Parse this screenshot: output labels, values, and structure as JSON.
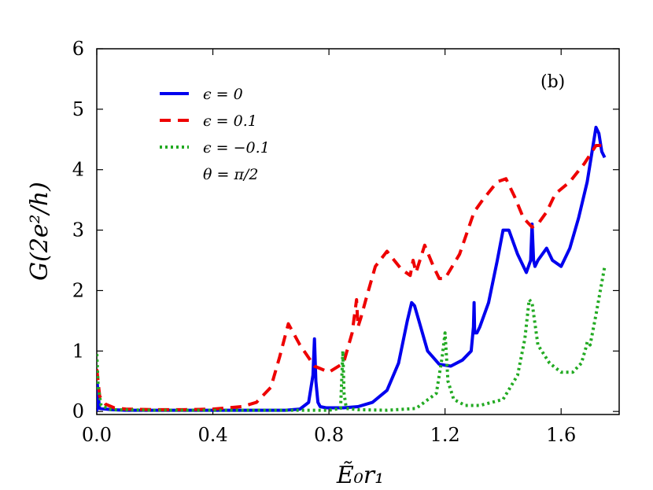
{
  "chart_data": {
    "type": "line",
    "title": "",
    "annotation": "(b)",
    "xlabel": "Ẽ₀r₁",
    "ylabel": "G(2e²/h)",
    "xlim": [
      0.0,
      1.8
    ],
    "ylim": [
      -0.05,
      6.0
    ],
    "xticks": [
      0.0,
      0.4,
      0.8,
      1.2,
      1.6
    ],
    "xtick_labels": [
      "0.0",
      "0.4",
      "0.8",
      "1.2",
      "1.6"
    ],
    "yticks": [
      0,
      1,
      2,
      3,
      4,
      5,
      6
    ],
    "ytick_labels": [
      "0",
      "1",
      "2",
      "3",
      "4",
      "5",
      "6"
    ],
    "grid": false,
    "legend_position": "top-left",
    "legend_note": "θ = π/2",
    "series": [
      {
        "name": "ϵ = 0",
        "color": "#0000ee",
        "style": "solid",
        "x": [
          0.0,
          0.002,
          0.005,
          0.01,
          0.05,
          0.1,
          0.2,
          0.3,
          0.4,
          0.5,
          0.6,
          0.65,
          0.7,
          0.73,
          0.745,
          0.75,
          0.755,
          0.762,
          0.77,
          0.79,
          0.85,
          0.9,
          0.95,
          1.0,
          1.04,
          1.07,
          1.085,
          1.095,
          1.11,
          1.14,
          1.18,
          1.22,
          1.26,
          1.29,
          1.298,
          1.3,
          1.302,
          1.31,
          1.32,
          1.35,
          1.38,
          1.4,
          1.42,
          1.45,
          1.48,
          1.495,
          1.5,
          1.505,
          1.51,
          1.52,
          1.55,
          1.57,
          1.6,
          1.63,
          1.66,
          1.69,
          1.71,
          1.72,
          1.73,
          1.74,
          1.75
        ],
        "y": [
          0.0,
          0.45,
          0.25,
          0.05,
          0.03,
          0.02,
          0.02,
          0.02,
          0.02,
          0.02,
          0.02,
          0.02,
          0.04,
          0.15,
          0.6,
          1.2,
          0.5,
          0.15,
          0.08,
          0.06,
          0.06,
          0.08,
          0.15,
          0.35,
          0.8,
          1.5,
          1.8,
          1.75,
          1.5,
          1.0,
          0.78,
          0.75,
          0.85,
          1.0,
          1.4,
          1.8,
          1.3,
          1.3,
          1.4,
          1.8,
          2.5,
          3.0,
          3.0,
          2.6,
          2.3,
          2.5,
          3.1,
          2.5,
          2.4,
          2.5,
          2.7,
          2.5,
          2.4,
          2.7,
          3.2,
          3.8,
          4.4,
          4.7,
          4.6,
          4.3,
          4.2
        ]
      },
      {
        "name": "ϵ = 0.1",
        "color": "#ee0000",
        "style": "dashed",
        "x": [
          0.0,
          0.01,
          0.03,
          0.06,
          0.1,
          0.2,
          0.3,
          0.4,
          0.5,
          0.55,
          0.6,
          0.63,
          0.66,
          0.7,
          0.75,
          0.8,
          0.85,
          0.88,
          0.895,
          0.9,
          0.91,
          0.93,
          0.96,
          1.0,
          1.05,
          1.08,
          1.09,
          1.1,
          1.13,
          1.16,
          1.18,
          1.2,
          1.25,
          1.3,
          1.33,
          1.38,
          1.41,
          1.44,
          1.47,
          1.5,
          1.52,
          1.55,
          1.58,
          1.63,
          1.68,
          1.72,
          1.75
        ],
        "y": [
          0.7,
          0.25,
          0.12,
          0.06,
          0.04,
          0.03,
          0.03,
          0.04,
          0.08,
          0.15,
          0.4,
          0.9,
          1.45,
          1.1,
          0.75,
          0.65,
          0.8,
          1.3,
          1.85,
          1.4,
          1.55,
          1.9,
          2.4,
          2.65,
          2.35,
          2.25,
          2.5,
          2.3,
          2.75,
          2.4,
          2.2,
          2.2,
          2.6,
          3.3,
          3.5,
          3.8,
          3.85,
          3.55,
          3.2,
          3.05,
          3.1,
          3.3,
          3.6,
          3.8,
          4.1,
          4.4,
          4.4
        ]
      },
      {
        "name": "ϵ = −0.1",
        "color": "#22aa22",
        "style": "dotted",
        "x": [
          0.0,
          0.005,
          0.015,
          0.05,
          0.2,
          0.4,
          0.6,
          0.8,
          0.84,
          0.848,
          0.852,
          0.86,
          0.9,
          1.0,
          1.1,
          1.17,
          1.19,
          1.2,
          1.21,
          1.23,
          1.27,
          1.32,
          1.4,
          1.45,
          1.475,
          1.49,
          1.5,
          1.52,
          1.56,
          1.6,
          1.64,
          1.67,
          1.685,
          1.69,
          1.7,
          1.72,
          1.75
        ],
        "y": [
          0.95,
          0.4,
          0.1,
          0.03,
          0.02,
          0.02,
          0.02,
          0.02,
          0.05,
          1.0,
          0.3,
          0.05,
          0.03,
          0.02,
          0.05,
          0.3,
          0.9,
          1.3,
          0.5,
          0.2,
          0.1,
          0.1,
          0.2,
          0.6,
          1.2,
          1.85,
          1.8,
          1.1,
          0.8,
          0.65,
          0.65,
          0.8,
          1.05,
          1.15,
          1.1,
          1.6,
          2.4
        ]
      }
    ]
  }
}
